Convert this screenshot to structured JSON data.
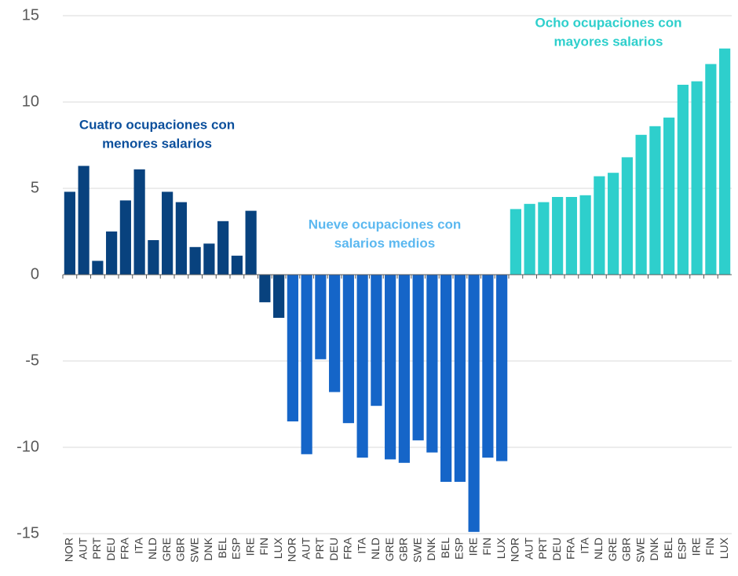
{
  "chart_data": {
    "type": "bar",
    "ylim": [
      -15,
      15
    ],
    "yticks": [
      -15,
      -10,
      -5,
      0,
      5,
      10,
      15
    ],
    "grid": true,
    "series": [
      {
        "name": [
          "Cuatro ocupaciones con",
          "menores salarios"
        ],
        "color": "#08427e",
        "label_color": "#0b4f9c",
        "categories": [
          "NOR",
          "AUT",
          "PRT",
          "DEU",
          "FRA",
          "ITA",
          "NLD",
          "GRE",
          "GBR",
          "SWE",
          "DNK",
          "BEL",
          "ESP",
          "IRE",
          "FIN",
          "LUX"
        ],
        "values": [
          4.8,
          6.3,
          0.8,
          2.5,
          4.3,
          6.1,
          2.0,
          4.8,
          4.2,
          1.6,
          1.8,
          3.1,
          1.1,
          3.7,
          -1.6,
          -2.5
        ]
      },
      {
        "name": [
          "Nueve ocupaciones con",
          "salarios medios"
        ],
        "color": "#1565c8",
        "label_color": "#5bb8f0",
        "categories": [
          "NOR",
          "AUT",
          "PRT",
          "DEU",
          "FRA",
          "ITA",
          "NLD",
          "GRE",
          "GBR",
          "SWE",
          "DNK",
          "BEL",
          "ESP",
          "IRE",
          "FIN",
          "LUX"
        ],
        "values": [
          -8.5,
          -10.4,
          -4.9,
          -6.8,
          -8.6,
          -10.6,
          -7.6,
          -10.7,
          -10.9,
          -9.6,
          -10.3,
          -12.0,
          -12.0,
          -14.9,
          -10.6,
          -10.8
        ]
      },
      {
        "name": [
          "Ocho ocupaciones con",
          "mayores salarios"
        ],
        "color": "#2ecfcc",
        "label_color": "#2ecfcc",
        "categories": [
          "NOR",
          "AUT",
          "PRT",
          "DEU",
          "FRA",
          "ITA",
          "NLD",
          "GRE",
          "GBR",
          "SWE",
          "DNK",
          "BEL",
          "ESP",
          "IRE",
          "FIN",
          "LUX"
        ],
        "values": [
          3.8,
          4.1,
          4.2,
          4.5,
          4.5,
          4.6,
          5.7,
          5.9,
          6.8,
          8.1,
          8.6,
          9.1,
          11.0,
          11.2,
          12.2,
          13.1
        ]
      }
    ]
  }
}
